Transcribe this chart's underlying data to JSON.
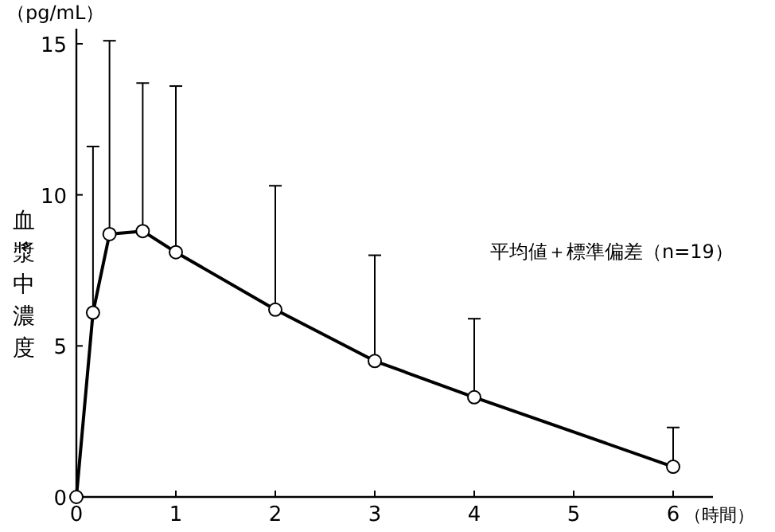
{
  "chart_data": {
    "type": "line",
    "ylabel": "血漿中濃度",
    "xlabel": "（時間）",
    "annotations": [
      "（pg/mL）",
      "平均値＋標準偏差（n=19）"
    ],
    "x": [
      0,
      0.167,
      0.333,
      0.667,
      1,
      2,
      3,
      4,
      6
    ],
    "values": [
      0,
      6.1,
      8.7,
      8.8,
      8.1,
      6.2,
      4.5,
      3.3,
      1.0
    ],
    "errors": [
      null,
      [
        6.1,
        11.6
      ],
      [
        8.7,
        15.1
      ],
      [
        8.8,
        13.7
      ],
      [
        8.1,
        13.6
      ],
      [
        6.2,
        10.3
      ],
      [
        4.5,
        8.0
      ],
      [
        3.3,
        5.9
      ],
      [
        1.0,
        2.3
      ]
    ],
    "color": "#000000",
    "marker": "circle",
    "line_style": "solid",
    "xlim": [
      0,
      6.4
    ],
    "ylim": [
      0,
      15.5
    ],
    "xticks": [
      0,
      1,
      2,
      3,
      4,
      5,
      6
    ],
    "yticks": [
      0,
      5,
      10,
      15
    ],
    "grid": false
  }
}
